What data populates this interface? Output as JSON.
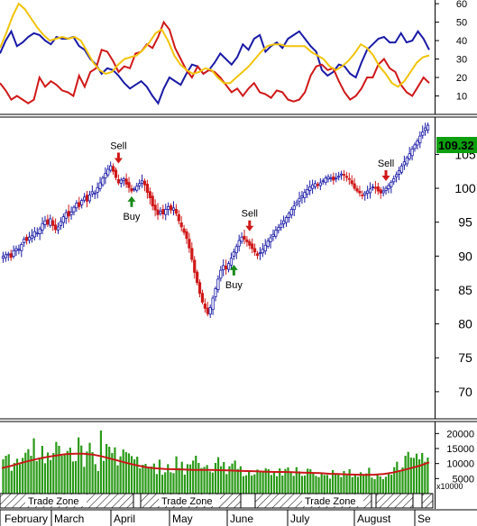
{
  "chart_data": [
    {
      "type": "line",
      "panel": "oscillator",
      "y_ticks": [
        10,
        20,
        30,
        40,
        50,
        60
      ],
      "ylim": [
        0,
        62
      ],
      "series": [
        {
          "role": "indicator-blue",
          "color": "#1a1aa6",
          "values": [
            33,
            40,
            45,
            37,
            39,
            42,
            44,
            43,
            40,
            38,
            42,
            41,
            41,
            42,
            37,
            35,
            30,
            27,
            22,
            25,
            24,
            21,
            17,
            14,
            16,
            18,
            15,
            10,
            6,
            14,
            20,
            18,
            16,
            22,
            27,
            26,
            22,
            24,
            28,
            33,
            30,
            27,
            31,
            38,
            35,
            41,
            43,
            34,
            37,
            39,
            36,
            41,
            43,
            45,
            41,
            37,
            34,
            24,
            21,
            23,
            27,
            26,
            22,
            20,
            28,
            35,
            38,
            41,
            42,
            39,
            39,
            44,
            39,
            40,
            45,
            41,
            35
          ]
        },
        {
          "role": "indicator-red",
          "color": "#d01818",
          "values": [
            17,
            13,
            8,
            10,
            8,
            6,
            8,
            20,
            15,
            18,
            16,
            13,
            12,
            10,
            21,
            15,
            23,
            25,
            35,
            34,
            29,
            23,
            26,
            25,
            33,
            34,
            38,
            36,
            42,
            50,
            46,
            36,
            30,
            24,
            20,
            26,
            22,
            24,
            23,
            20,
            16,
            12,
            14,
            10,
            14,
            17,
            12,
            11,
            9,
            13,
            12,
            8,
            7,
            8,
            12,
            21,
            26,
            27,
            24,
            25,
            18,
            12,
            8,
            10,
            14,
            20,
            20,
            27,
            30,
            25,
            23,
            16,
            12,
            10,
            15,
            20,
            17
          ]
        },
        {
          "role": "indicator-yellow",
          "color": "#f2c40c",
          "values": [
            36,
            44,
            53,
            60,
            57,
            52,
            47,
            43,
            40,
            41,
            42,
            41,
            42,
            40,
            34,
            28,
            24,
            22,
            23,
            27,
            30,
            31,
            32,
            35,
            39,
            44,
            46,
            40,
            32,
            27,
            24,
            22,
            23,
            25,
            24,
            20,
            17,
            17,
            20,
            23,
            26,
            30,
            34,
            37,
            38,
            38,
            37,
            37,
            37,
            37,
            34,
            32,
            30,
            26,
            24,
            26,
            29,
            33,
            38,
            36,
            32,
            26,
            22,
            17,
            15,
            18,
            23,
            28,
            31,
            32
          ]
        }
      ]
    },
    {
      "type": "candlestick",
      "panel": "price",
      "y_ticks": [
        70,
        75,
        80,
        85,
        90,
        95,
        100,
        105
      ],
      "ylim": [
        66,
        110.5
      ],
      "last_price": "109.32",
      "closes": [
        90.0,
        90.2,
        90.3,
        89.8,
        90.8,
        91.1,
        91.0,
        91.7,
        92.5,
        92.3,
        92.8,
        93.0,
        93.6,
        93.4,
        94.0,
        94.8,
        95.2,
        94.7,
        95.5,
        94.5,
        93.9,
        94.3,
        95.1,
        95.8,
        96.4,
        95.9,
        96.5,
        97.2,
        97.8,
        97.3,
        98.2,
        98.7,
        98.1,
        99.0,
        99.5,
        99.3,
        100.1,
        100.8,
        101.5,
        102.2,
        102.8,
        103.3,
        102.5,
        101.6,
        100.8,
        101.2,
        101.4,
        100.6,
        100.1,
        99.6,
        99.9,
        100.3,
        100.7,
        101.1,
        100.5,
        99.4,
        98.6,
        97.4,
        96.8,
        96.1,
        96.6,
        96.2,
        96.9,
        97.3,
        96.8,
        97.1,
        96.3,
        95.2,
        94.3,
        93.5,
        92.6,
        91.2,
        89.5,
        87.6,
        86.1,
        84.5,
        83.2,
        82.3,
        81.5,
        82.4,
        83.8,
        85.2,
        86.6,
        87.9,
        88.6,
        88.1,
        88.9,
        89.7,
        90.6,
        91.4,
        92.3,
        92.8,
        92.5,
        92.1,
        91.6,
        91.1,
        90.6,
        90.1,
        90.5,
        91.0,
        91.6,
        92.2,
        92.7,
        93.2,
        93.8,
        94.2,
        94.7,
        95.2,
        95.7,
        96.3,
        96.9,
        97.4,
        97.9,
        98.5,
        98.9,
        99.4,
        99.8,
        100.2,
        100.5,
        100.7,
        100.4,
        100.8,
        101.1,
        101.5,
        101.7,
        101.5,
        101.2,
        101.5,
        101.8,
        102.1,
        102.0,
        101.6,
        101.3,
        100.7,
        100.0,
        99.6,
        99.3,
        99.0,
        99.3,
        99.6,
        99.9,
        100.2,
        100.0,
        99.6,
        99.3,
        99.6,
        100.0,
        100.4,
        100.9,
        101.4,
        102.0,
        102.6,
        103.3,
        103.9,
        104.5,
        105.1,
        105.8,
        106.4,
        107.0,
        107.7,
        108.3,
        108.9,
        109.3
      ],
      "signals": [
        {
          "label": "Sell",
          "index": 44,
          "price": 103.4,
          "direction": "down"
        },
        {
          "label": "Buy",
          "index": 49,
          "price": 99.1,
          "direction": "up"
        },
        {
          "label": "Buy",
          "index": 88,
          "price": 89.0,
          "direction": "up"
        },
        {
          "label": "Sell",
          "index": 94,
          "price": 93.4,
          "direction": "down"
        },
        {
          "label": "Sell",
          "index": 146,
          "price": 100.8,
          "direction": "down"
        }
      ]
    },
    {
      "type": "bar",
      "panel": "volume",
      "y_ticks": [
        "20000",
        "15000",
        "10000",
        "5000"
      ],
      "scale_label": "x10000",
      "ylim": [
        0,
        24000
      ],
      "values": [
        11400,
        12600,
        13100,
        7600,
        10200,
        11600,
        9800,
        11900,
        13600,
        14800,
        12600,
        18400,
        10800,
        12000,
        15900,
        10100,
        13700,
        11200,
        13500,
        17200,
        15900,
        12600,
        12900,
        14200,
        15300,
        10700,
        10800,
        18700,
        16000,
        8900,
        14000,
        16900,
        13800,
        9800,
        7500,
        21000,
        10900,
        16500,
        15600,
        13500,
        15400,
        9400,
        12400,
        14700,
        13800,
        13400,
        12500,
        11400,
        12300,
        8400,
        9600,
        9900,
        8900,
        9000,
        10000,
        6500,
        11300,
        6300,
        7100,
        9800,
        7100,
        6800,
        12400,
        8500,
        10600,
        6300,
        9800,
        9700,
        11000,
        12600,
        10200,
        8500,
        8900,
        9500,
        7400,
        7000,
        10200,
        12100,
        9100,
        10500,
        6500,
        9100,
        10000,
        11000,
        8200,
        9100,
        5800,
        6100,
        7300,
        6000,
        6400,
        8000,
        7100,
        7400,
        8400,
        8100,
        6200,
        6900,
        5800,
        8400,
        6000,
        8200,
        8700,
        6900,
        5900,
        8800,
        7400,
        5900,
        6000,
        8300,
        8100,
        6700,
        5900,
        5500,
        6700,
        6200,
        6200,
        5000,
        7800,
        6500,
        6700,
        5500,
        7500,
        6100,
        8100,
        5500,
        6100,
        5600,
        7100,
        6300,
        6700,
        8600,
        5300,
        4800,
        6300,
        5700,
        4800,
        5600,
        6600,
        6300,
        8800,
        10600,
        7700,
        8700,
        12600,
        13900,
        12000,
        11900,
        13300,
        11400,
        13500,
        10600,
        12000
      ],
      "moving_average": {
        "color": "#c81818",
        "values": [
          8500,
          9200,
          10100,
          10900,
          11600,
          12200,
          12700,
          13100,
          13300,
          13300,
          13000,
          12400,
          11600,
          10800,
          10000,
          9300,
          8700,
          8400,
          8200,
          8100,
          8000,
          7900,
          7900,
          7900,
          7800,
          7700,
          7600,
          7500,
          7400,
          7300,
          7200,
          7200,
          7100,
          7000,
          6900,
          6800,
          6600,
          6500,
          6400,
          6300,
          6200,
          6300,
          6500,
          7000,
          7700,
          8500,
          9300,
          10400
        ]
      },
      "trade_zones": [
        "Trade Zone",
        "Trade Zone",
        "Trade Zone"
      ]
    }
  ],
  "x_axis": {
    "months": [
      "February",
      "March",
      "April",
      "May",
      "June",
      "July",
      "August",
      "Se"
    ]
  },
  "colors": {
    "up_candle": "#1a1aa6",
    "down_candle": "#d01818",
    "volume_bar": "#2a9a18",
    "buy_arrow": "#1b8a1b",
    "sell_arrow": "#d01818",
    "last_price_bg": "#0d9f0d"
  }
}
